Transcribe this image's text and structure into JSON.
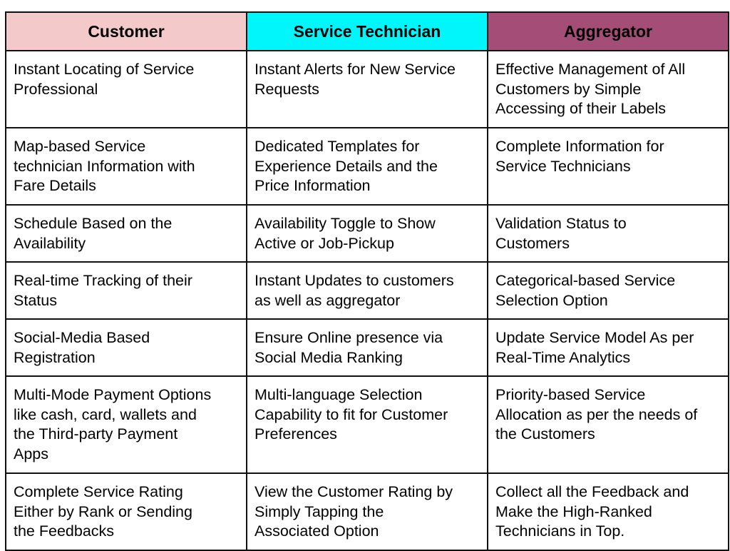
{
  "colors": {
    "customer_header": "#f4c9c9",
    "technician_header": "#00f6fb",
    "aggregator_header": "#a34d77",
    "border": "#111111"
  },
  "headers": [
    "Customer",
    "Service Technician",
    "Aggregator"
  ],
  "rows": [
    [
      "Instant Locating of Service\nProfessional",
      "Instant Alerts for New Service\nRequests",
      "Effective Management of All\nCustomers by  Simple\nAccessing of their Labels"
    ],
    [
      "Map-based Service\ntechnician Information with\nFare Details",
      "Dedicated Templates for\nExperience Details and the\nPrice Information",
      "Complete Information for\nService Technicians"
    ],
    [
      "Schedule Based on the\nAvailability",
      "Availability Toggle to Show\nActive or Job-Pickup",
      "Validation Status to\nCustomers"
    ],
    [
      "Real-time Tracking of their\nStatus",
      "Instant Updates to customers\nas well as aggregator",
      "Categorical-based Service\nSelection Option"
    ],
    [
      "Social-Media Based\nRegistration",
      "Ensure Online presence via\nSocial Media Ranking",
      "Update Service Model As per\nReal-Time Analytics"
    ],
    [
      "Multi-Mode Payment Options\nlike cash, card, wallets and\nthe Third-party Payment\nApps",
      "Multi-language Selection\nCapability to fit for Customer\nPreferences",
      "Priority-based Service\nAllocation as per the needs of\nthe Customers"
    ],
    [
      "Complete Service Rating\nEither by Rank or Sending\nthe Feedbacks",
      "View the Customer Rating by\nSimply Tapping the\nAssociated Option",
      "Collect all the Feedback and\nMake the High-Ranked\nTechnicians in Top."
    ]
  ]
}
